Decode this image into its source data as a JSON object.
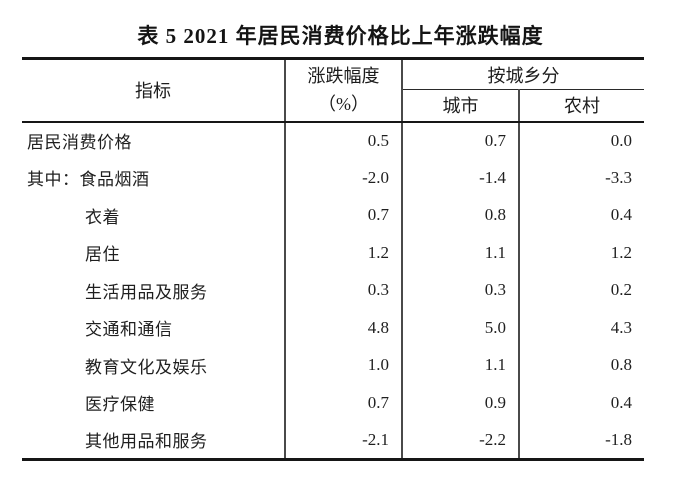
{
  "title": "表 5  2021 年居民消费价格比上年涨跌幅度",
  "table": {
    "header": {
      "indicator": "指标",
      "change_line1": "涨跌幅度",
      "change_line2": "（%）",
      "by_region": "按城乡分",
      "urban": "城市",
      "rural": "农村"
    },
    "rows": [
      {
        "label": "居民消费价格",
        "indent": false,
        "values": [
          "0.5",
          "0.7",
          "0.0"
        ]
      },
      {
        "label": "其中：食品烟酒",
        "indent": false,
        "values": [
          "-2.0",
          "-1.4",
          "-3.3"
        ]
      },
      {
        "label": "衣着",
        "indent": true,
        "values": [
          "0.7",
          "0.8",
          "0.4"
        ]
      },
      {
        "label": "居住",
        "indent": true,
        "values": [
          "1.2",
          "1.1",
          "1.2"
        ]
      },
      {
        "label": "生活用品及服务",
        "indent": true,
        "values": [
          "0.3",
          "0.3",
          "0.2"
        ]
      },
      {
        "label": "交通和通信",
        "indent": true,
        "values": [
          "4.8",
          "5.0",
          "4.3"
        ]
      },
      {
        "label": "教育文化及娱乐",
        "indent": true,
        "values": [
          "1.0",
          "1.1",
          "0.8"
        ]
      },
      {
        "label": "医疗保健",
        "indent": true,
        "values": [
          "0.7",
          "0.9",
          "0.4"
        ]
      },
      {
        "label": "其他用品和服务",
        "indent": true,
        "values": [
          "-2.1",
          "-2.2",
          "-1.8"
        ]
      }
    ]
  },
  "colors": {
    "background": "#ffffff",
    "text": "#1c1c1c",
    "rule_heavy": "#161616",
    "rule_light": "#4a4a4a"
  }
}
